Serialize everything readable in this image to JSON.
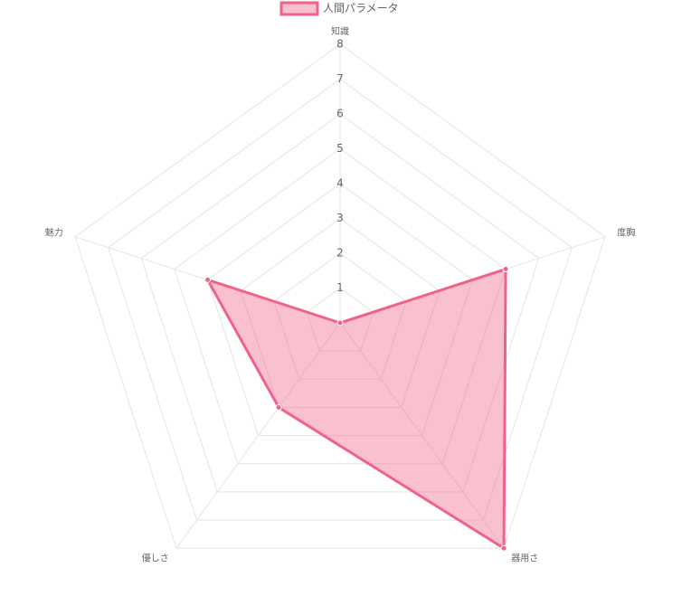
{
  "chart_data": {
    "type": "radar",
    "categories": [
      "知識",
      "度胸",
      "器用さ",
      "優しさ",
      "魅力"
    ],
    "series": [
      {
        "name": "人間パラメータ",
        "color": "#f0628a",
        "values": [
          0,
          5,
          8,
          3,
          4
        ]
      }
    ],
    "rlim": [
      0,
      8
    ],
    "rticks": [
      1,
      2,
      3,
      4,
      5,
      6,
      7,
      8
    ],
    "grid": true,
    "legend": "top"
  }
}
